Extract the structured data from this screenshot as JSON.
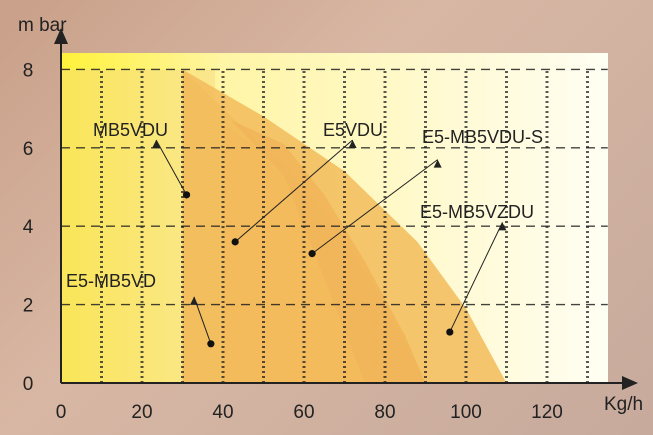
{
  "chart_data": {
    "type": "area",
    "ylabel": "m bar",
    "xlabel": "Kg/h",
    "xlim": [
      0,
      135
    ],
    "ylim": [
      0,
      8
    ],
    "x_ticks": [
      "0",
      "20",
      "40",
      "60",
      "80",
      "100",
      "120"
    ],
    "y_ticks": [
      "0",
      "2",
      "4",
      "6",
      "8"
    ],
    "grid": true,
    "series": [
      {
        "name": "E5-MB5VD",
        "color": "#f3d77c",
        "x": [
          0,
          38
        ],
        "y_max": 8
      },
      {
        "name": "MB5VDU",
        "color": "#f2bd5d",
        "points": [
          [
            30,
            0
          ],
          [
            30,
            8
          ],
          [
            38,
            7.2
          ],
          [
            55,
            5.5
          ],
          [
            70,
            3.5
          ],
          [
            82,
            1.5
          ],
          [
            90,
            0
          ]
        ]
      },
      {
        "name": "E5VDU",
        "color": "#f0a84a",
        "points": [
          [
            40,
            0
          ],
          [
            40,
            6.6
          ],
          [
            55,
            5.6
          ],
          [
            68,
            4.0
          ],
          [
            80,
            2.0
          ],
          [
            90,
            0
          ]
        ]
      },
      {
        "name": "E5-MB5VDU-S",
        "color": "#e47c35",
        "points": [
          [
            75,
            0
          ],
          [
            55,
            5.3
          ],
          [
            42,
            6.7
          ],
          [
            55,
            6.1
          ],
          [
            65,
            4.8
          ],
          [
            75,
            3.1
          ],
          [
            85,
            1.2
          ],
          [
            90,
            0
          ]
        ]
      },
      {
        "name": "E5-MB5VZDU",
        "color": "#f2bd5d",
        "points": [
          [
            30,
            0
          ],
          [
            30,
            8
          ],
          [
            50,
            6.8
          ],
          [
            70,
            5.4
          ],
          [
            88,
            3.6
          ],
          [
            100,
            1.9
          ],
          [
            110,
            0
          ]
        ]
      }
    ],
    "annotations": [
      {
        "text": "MB5VDU",
        "point": [
          31,
          4.8
        ],
        "label_at": [
          23,
          6.3
        ]
      },
      {
        "text": "E5VDU",
        "point": [
          43,
          3.6
        ],
        "label_at": [
          72,
          6.3
        ]
      },
      {
        "text": "E5-MB5VDU-S",
        "point": [
          62,
          3.3
        ],
        "label_at": [
          93,
          5.8
        ]
      },
      {
        "text": "E5-MB5VZDU",
        "point": [
          96,
          1.3
        ],
        "label_at": [
          109,
          4.2
        ]
      },
      {
        "text": "E5-MB5VD",
        "point": [
          37,
          1.0
        ],
        "label_at": [
          20,
          2.3
        ]
      }
    ]
  }
}
